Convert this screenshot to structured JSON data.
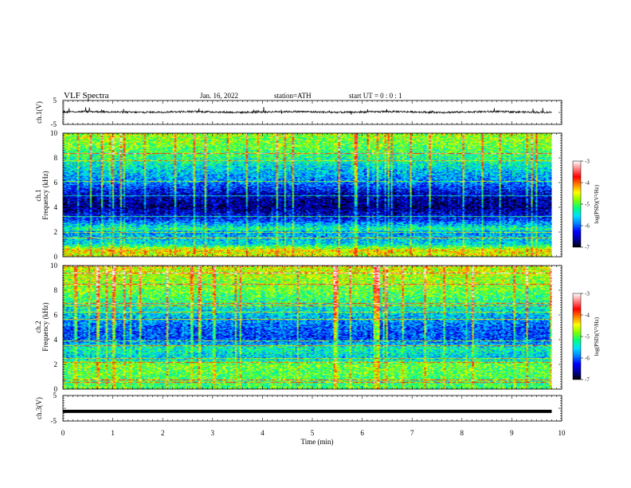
{
  "header": {
    "title": "VLF  Spectra",
    "date": "Jan. 16, 2022",
    "station": "station=ATH",
    "start": "start  UT  =    0 : 0  : 1"
  },
  "colorbar_label": "log(PSD)(V²/Hz)",
  "colorbar_ticks": [
    "-3",
    "-4",
    "-5",
    "-6",
    "-7"
  ],
  "colorscale": [
    "#000000",
    "#0000a0",
    "#0000ff",
    "#0080ff",
    "#00e0ff",
    "#00ff80",
    "#80ff00",
    "#ffff00",
    "#ff8000",
    "#ff0000",
    "#ff8080",
    "#ffffff"
  ],
  "chart_data": [
    {
      "type": "line",
      "panel": "ch1-waveform",
      "ylabel": "ch.1(V)",
      "ylim": [
        -5,
        5
      ],
      "y_ticks": [
        "5",
        "-5"
      ],
      "x": [
        0,
        9.8
      ],
      "baseline": 0.2,
      "noise_amplitude": 0.8
    },
    {
      "type": "heatmap",
      "panel": "ch1-spectrogram",
      "ylabel": "ch.1\nFrequency (kHz)",
      "ylim": [
        0,
        10
      ],
      "y_ticks": [
        "0",
        "2",
        "4",
        "6",
        "8",
        "10"
      ],
      "zlim": [
        -7,
        -3
      ],
      "x_range": [
        0,
        9.8
      ],
      "frequency_profile": [
        {
          "f": 0,
          "z": -4.6
        },
        {
          "f": 0.5,
          "z": -4.4
        },
        {
          "f": 1,
          "z": -5.5
        },
        {
          "f": 2,
          "z": -5.8
        },
        {
          "f": 2.2,
          "z": -5.2
        },
        {
          "f": 3,
          "z": -6.2
        },
        {
          "f": 4,
          "z": -6.7
        },
        {
          "f": 5,
          "z": -6.5
        },
        {
          "f": 6,
          "z": -5.9
        },
        {
          "f": 7,
          "z": -5.6
        },
        {
          "f": 8,
          "z": -5.2
        },
        {
          "f": 9,
          "z": -4.9
        },
        {
          "f": 10,
          "z": -4.7
        }
      ]
    },
    {
      "type": "heatmap",
      "panel": "ch2-spectrogram",
      "ylabel": "ch.2\nFrequency (kHz)",
      "ylim": [
        0,
        10
      ],
      "y_ticks": [
        "0",
        "2",
        "4",
        "6",
        "8",
        "10"
      ],
      "zlim": [
        -7,
        -3
      ],
      "x_range": [
        0,
        9.8
      ],
      "frequency_profile": [
        {
          "f": 0,
          "z": -5.0
        },
        {
          "f": 0.5,
          "z": -5.1
        },
        {
          "f": 1,
          "z": -5.0
        },
        {
          "f": 2,
          "z": -4.9
        },
        {
          "f": 2.5,
          "z": -5.6
        },
        {
          "f": 3.3,
          "z": -5.3
        },
        {
          "f": 4,
          "z": -6.1
        },
        {
          "f": 5,
          "z": -6.0
        },
        {
          "f": 6,
          "z": -5.6
        },
        {
          "f": 7,
          "z": -5.2
        },
        {
          "f": 8,
          "z": -4.9
        },
        {
          "f": 9,
          "z": -4.7
        },
        {
          "f": 10,
          "z": -4.5
        }
      ]
    },
    {
      "type": "line",
      "panel": "ch3-waveform",
      "ylabel": "ch.3(V)",
      "ylim": [
        -5,
        5
      ],
      "y_ticks": [
        "5",
        "-5"
      ],
      "x": [
        0,
        9.8
      ],
      "y": [
        -1.2,
        -1.2
      ],
      "xlabel": "Time  (min)",
      "xlim": [
        0,
        10
      ],
      "x_ticks": [
        "0",
        "1",
        "2",
        "3",
        "4",
        "5",
        "6",
        "7",
        "8",
        "9",
        "10"
      ]
    }
  ]
}
